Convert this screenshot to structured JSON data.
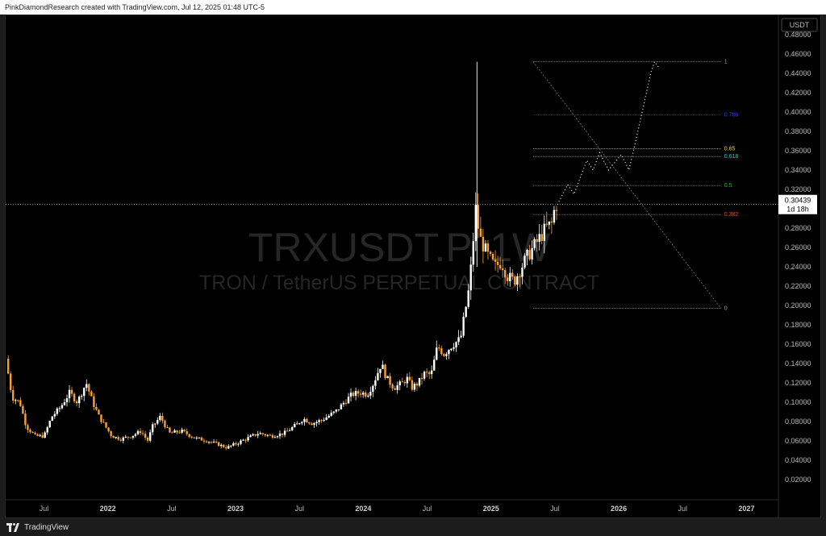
{
  "header": {
    "credit": "PinkDiamondResearch created with TradingView.com, Jul 12, 2025 01:48 UTC-5"
  },
  "watermark": {
    "symbol": "TRXUSDT.P, 1W",
    "description": "TRON / TetherUS PERPETUAL CONTRACT"
  },
  "price_axis": {
    "currency": "USDT",
    "last_price": "0.30439",
    "countdown": "1d 18h"
  },
  "footer": {
    "brand": "TradingView"
  },
  "colors": {
    "up": "#ffffff",
    "down": "#f7a135",
    "background": "#000000",
    "fib_1": "#9e9e9e",
    "fib_0786": "#3a3ad6",
    "fib_065": "#d8d85a",
    "fib_0618": "#3ec2b4",
    "fib_05": "#3aa83a",
    "fib_0382": "#d84a3a",
    "fib_0": "#9e9e9e"
  },
  "chart_data": {
    "type": "candlestick",
    "symbol": "TRXUSDT.P",
    "interval": "1W",
    "ylim": [
      0.0,
      0.48
    ],
    "y_ticks": [
      "0.02000",
      "0.04000",
      "0.06000",
      "0.08000",
      "0.10000",
      "0.12000",
      "0.14000",
      "0.16000",
      "0.18000",
      "0.20000",
      "0.22000",
      "0.24000",
      "0.26000",
      "0.28000",
      "0.30000",
      "0.32000",
      "0.34000",
      "0.36000",
      "0.38000",
      "0.40000",
      "0.42000",
      "0.44000",
      "0.46000",
      "0.48000"
    ],
    "x_ticks": [
      {
        "label": "Jul",
        "t": 2021.5,
        "bold": false
      },
      {
        "label": "2022",
        "t": 2022.0,
        "bold": true
      },
      {
        "label": "Jul",
        "t": 2022.5,
        "bold": false
      },
      {
        "label": "2023",
        "t": 2023.0,
        "bold": true
      },
      {
        "label": "Jul",
        "t": 2023.5,
        "bold": false
      },
      {
        "label": "2024",
        "t": 2024.0,
        "bold": true
      },
      {
        "label": "Jul",
        "t": 2024.5,
        "bold": false
      },
      {
        "label": "2025",
        "t": 2025.0,
        "bold": true
      },
      {
        "label": "Jul",
        "t": 2025.5,
        "bold": false
      },
      {
        "label": "2026",
        "t": 2026.0,
        "bold": true
      },
      {
        "label": "Jul",
        "t": 2026.5,
        "bold": false
      },
      {
        "label": "2027",
        "t": 2027.0,
        "bold": true
      }
    ],
    "price_path": [
      [
        2021.22,
        0.145
      ],
      [
        2021.27,
        0.105
      ],
      [
        2021.33,
        0.1
      ],
      [
        2021.38,
        0.075
      ],
      [
        2021.45,
        0.065
      ],
      [
        2021.52,
        0.065
      ],
      [
        2021.58,
        0.085
      ],
      [
        2021.65,
        0.095
      ],
      [
        2021.72,
        0.11
      ],
      [
        2021.78,
        0.1
      ],
      [
        2021.85,
        0.12
      ],
      [
        2021.9,
        0.1
      ],
      [
        2021.95,
        0.085
      ],
      [
        2022.0,
        0.075
      ],
      [
        2022.05,
        0.065
      ],
      [
        2022.12,
        0.062
      ],
      [
        2022.2,
        0.065
      ],
      [
        2022.28,
        0.07
      ],
      [
        2022.33,
        0.06
      ],
      [
        2022.37,
        0.075
      ],
      [
        2022.43,
        0.085
      ],
      [
        2022.5,
        0.068
      ],
      [
        2022.6,
        0.07
      ],
      [
        2022.7,
        0.063
      ],
      [
        2022.8,
        0.06
      ],
      [
        2022.87,
        0.057
      ],
      [
        2022.95,
        0.053
      ],
      [
        2023.02,
        0.057
      ],
      [
        2023.1,
        0.062
      ],
      [
        2023.2,
        0.068
      ],
      [
        2023.3,
        0.065
      ],
      [
        2023.4,
        0.068
      ],
      [
        2023.5,
        0.077
      ],
      [
        2023.55,
        0.083
      ],
      [
        2023.62,
        0.078
      ],
      [
        2023.7,
        0.082
      ],
      [
        2023.8,
        0.09
      ],
      [
        2023.87,
        0.1
      ],
      [
        2023.93,
        0.108
      ],
      [
        2024.0,
        0.11
      ],
      [
        2024.05,
        0.108
      ],
      [
        2024.1,
        0.12
      ],
      [
        2024.16,
        0.14
      ],
      [
        2024.2,
        0.125
      ],
      [
        2024.26,
        0.115
      ],
      [
        2024.33,
        0.12
      ],
      [
        2024.36,
        0.125
      ],
      [
        2024.4,
        0.115
      ],
      [
        2024.45,
        0.12
      ],
      [
        2024.5,
        0.13
      ],
      [
        2024.55,
        0.128
      ],
      [
        2024.6,
        0.158
      ],
      [
        2024.65,
        0.15
      ],
      [
        2024.72,
        0.16
      ],
      [
        2024.78,
        0.165
      ],
      [
        2024.85,
        0.22
      ],
      [
        2024.9,
        0.3
      ],
      [
        2024.93,
        0.27
      ],
      [
        2025.0,
        0.25
      ],
      [
        2025.05,
        0.24
      ],
      [
        2025.1,
        0.245
      ],
      [
        2025.15,
        0.23
      ],
      [
        2025.2,
        0.225
      ],
      [
        2025.25,
        0.238
      ],
      [
        2025.3,
        0.25
      ],
      [
        2025.35,
        0.26
      ],
      [
        2025.4,
        0.27
      ],
      [
        2025.45,
        0.28
      ],
      [
        2025.5,
        0.285
      ],
      [
        2025.52,
        0.30439
      ]
    ],
    "projection": [
      [
        2025.52,
        0.30439
      ],
      [
        2025.6,
        0.325
      ],
      [
        2025.65,
        0.315
      ],
      [
        2025.75,
        0.35
      ],
      [
        2025.8,
        0.34
      ],
      [
        2025.85,
        0.358
      ],
      [
        2025.92,
        0.34
      ],
      [
        2026.02,
        0.356
      ],
      [
        2026.08,
        0.34
      ],
      [
        2026.15,
        0.38
      ],
      [
        2026.25,
        0.44
      ],
      [
        2026.28,
        0.452
      ],
      [
        2026.32,
        0.445
      ]
    ],
    "fib_retracement": {
      "t_start": 2025.33,
      "t_end": 2026.8,
      "levels": [
        {
          "label": "1",
          "value": 0.452
        },
        {
          "label": "0.786",
          "value": 0.397
        },
        {
          "label": "0.65",
          "value": 0.362
        },
        {
          "label": "0.618",
          "value": 0.354
        },
        {
          "label": "0.5",
          "value": 0.324
        },
        {
          "label": "0.382",
          "value": 0.294
        },
        {
          "label": "0",
          "value": 0.197
        }
      ]
    },
    "spike": {
      "t": 2024.89,
      "high": 0.452
    },
    "last_price_level": 0.30439
  }
}
